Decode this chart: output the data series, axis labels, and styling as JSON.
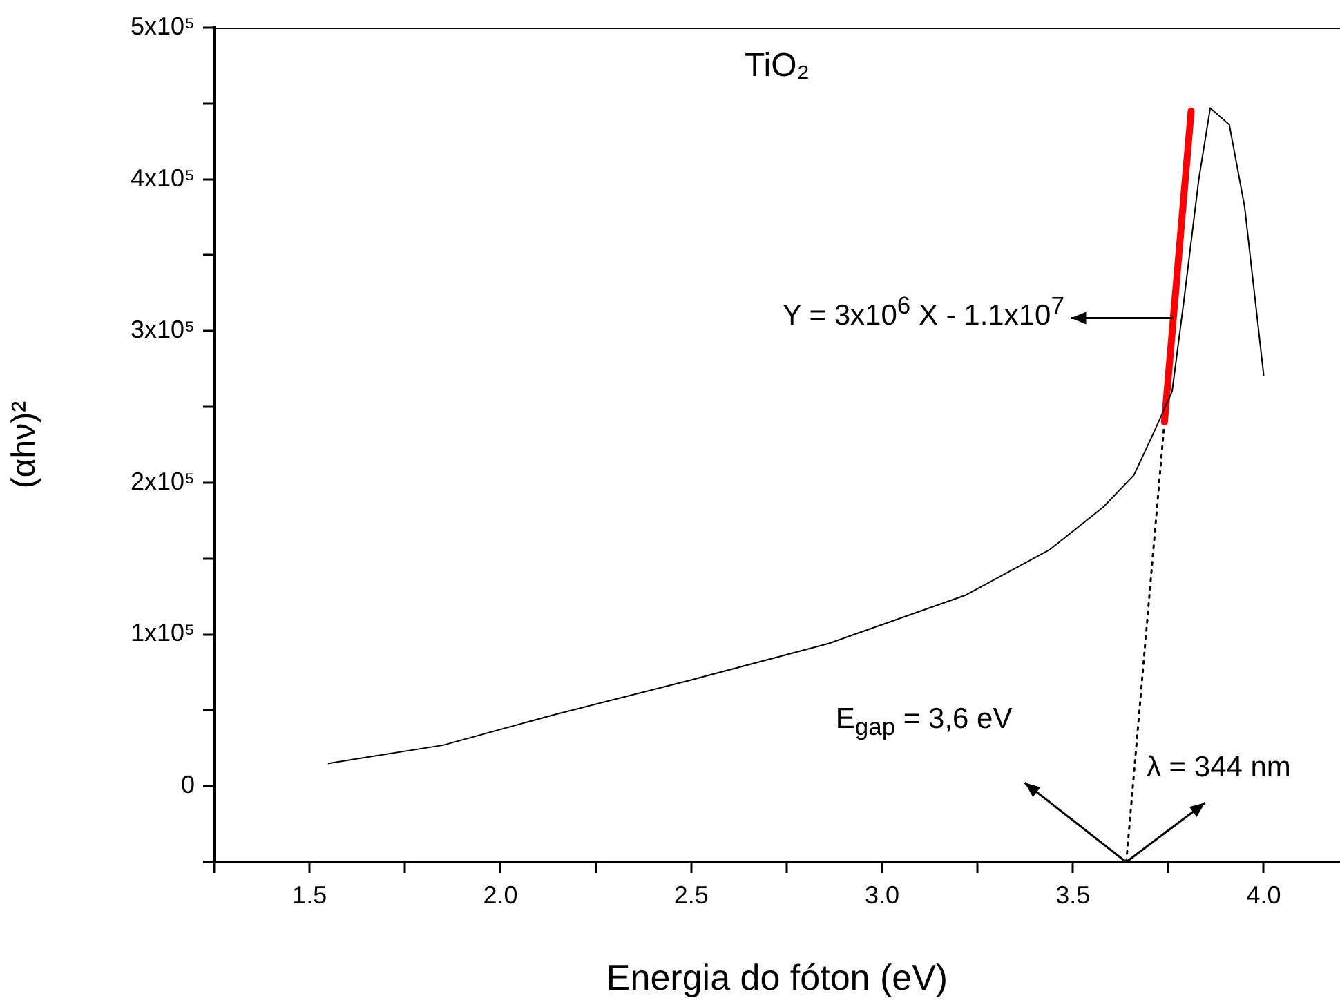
{
  "chart_data": {
    "type": "line",
    "title": "TiO₂",
    "xlabel": "Energia do fóton (eV)",
    "ylabel": "(αhν)²",
    "x": [
      1.55,
      1.85,
      2.14,
      2.5,
      2.86,
      3.22,
      3.44,
      3.58,
      3.66,
      3.71,
      3.76,
      3.79,
      3.83,
      3.86,
      3.91,
      3.95,
      4.0
    ],
    "series": [
      {
        "color": "#000000",
        "line_style": "solid",
        "values": [
          15000,
          27000,
          47000,
          70000,
          94000,
          126000,
          156000,
          184000,
          205000,
          232000,
          260000,
          318000,
          400000,
          447000,
          436000,
          382000,
          271000
        ]
      },
      {
        "color": "#ff0000",
        "line_style": "solid",
        "x": [
          3.74,
          3.81
        ],
        "values": [
          240000,
          445000
        ]
      },
      {
        "color": "#000000",
        "line_style": "dotted",
        "x": [
          3.64,
          3.74
        ],
        "values": [
          -50000,
          240000
        ]
      }
    ],
    "annotations": [
      "Y = 3x10$^{6}$ X - 1.1x10$^{7}$",
      "E$_{gap}$ = 3,6 eV",
      {
        "text": "λ = 344 nm",
        "x": 3.64,
        "y": -50000
      }
    ],
    "xlim": [
      1.25,
      4.2
    ],
    "xticks": [
      {
        "value": 1.25,
        "label": null
      },
      {
        "value": 1.5,
        "label": "1.5"
      },
      {
        "value": 1.75,
        "label": null
      },
      {
        "value": 2.0,
        "label": "2.0"
      },
      {
        "value": 2.25,
        "label": null
      },
      {
        "value": 2.5,
        "label": "2.5"
      },
      {
        "value": 2.75,
        "label": null
      },
      {
        "value": 3.0,
        "label": "3.0"
      },
      {
        "value": 3.25,
        "label": null
      },
      {
        "value": 3.5,
        "label": "3.5"
      },
      {
        "value": 3.75,
        "label": null
      },
      {
        "value": 4.0,
        "label": "4.0"
      }
    ],
    "ylim": [
      -50000,
      500000
    ],
    "yticks": [
      {
        "value": -50000,
        "label": null
      },
      0,
      {
        "value": 50000,
        "label": null
      },
      {
        "value": 100000,
        "label": "1x10⁵"
      },
      {
        "value": 150000,
        "label": null
      },
      {
        "value": 200000,
        "label": "2x10⁵"
      },
      {
        "value": 250000,
        "label": null
      },
      {
        "value": 300000,
        "label": "3x10⁵"
      },
      {
        "value": 350000,
        "label": null
      },
      {
        "value": 400000,
        "label": "4x10⁵"
      },
      {
        "value": 450000,
        "label": null
      },
      {
        "value": 500000,
        "label": "5x10⁵"
      }
    ],
    "grid": false,
    "legend": false,
    "marker": "none"
  }
}
